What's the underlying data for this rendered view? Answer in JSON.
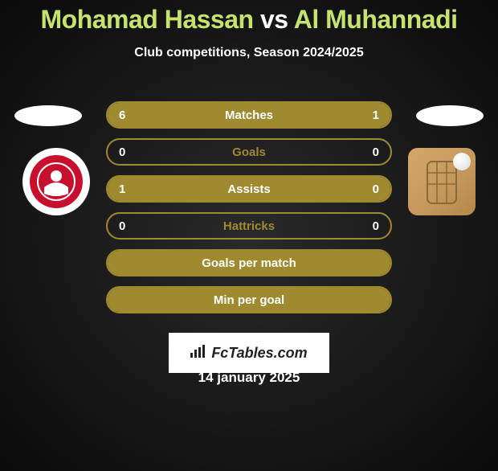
{
  "title": {
    "player1": "Mohamad Hassan",
    "vs": "vs",
    "player2": "Al Muhannadi"
  },
  "subtitle": "Club competitions, Season 2024/2025",
  "colors": {
    "accent": "#a08a2f",
    "title_player": "#c7e36e",
    "text": "#ffffff",
    "label_empty": "#a08a2f",
    "label_filled": "#ffffff"
  },
  "stats": [
    {
      "label": "Matches",
      "left_value": "6",
      "right_value": "1",
      "left_fill_pct": 86,
      "right_fill_pct": 14,
      "label_color": "#ffffff"
    },
    {
      "label": "Goals",
      "left_value": "0",
      "right_value": "0",
      "left_fill_pct": 0,
      "right_fill_pct": 0,
      "label_color": "#a08a2f"
    },
    {
      "label": "Assists",
      "left_value": "1",
      "right_value": "0",
      "left_fill_pct": 100,
      "right_fill_pct": 0,
      "label_color": "#ffffff"
    },
    {
      "label": "Hattricks",
      "left_value": "0",
      "right_value": "0",
      "left_fill_pct": 0,
      "right_fill_pct": 0,
      "label_color": "#a08a2f"
    },
    {
      "label": "Goals per match",
      "left_value": "",
      "right_value": "",
      "left_fill_pct": 100,
      "right_fill_pct": 0,
      "label_color": "#ffffff"
    },
    {
      "label": "Min per goal",
      "left_value": "",
      "right_value": "",
      "left_fill_pct": 100,
      "right_fill_pct": 0,
      "label_color": "#ffffff"
    }
  ],
  "footer": {
    "brand": "FcTables.com",
    "date": "14 january 2025"
  }
}
